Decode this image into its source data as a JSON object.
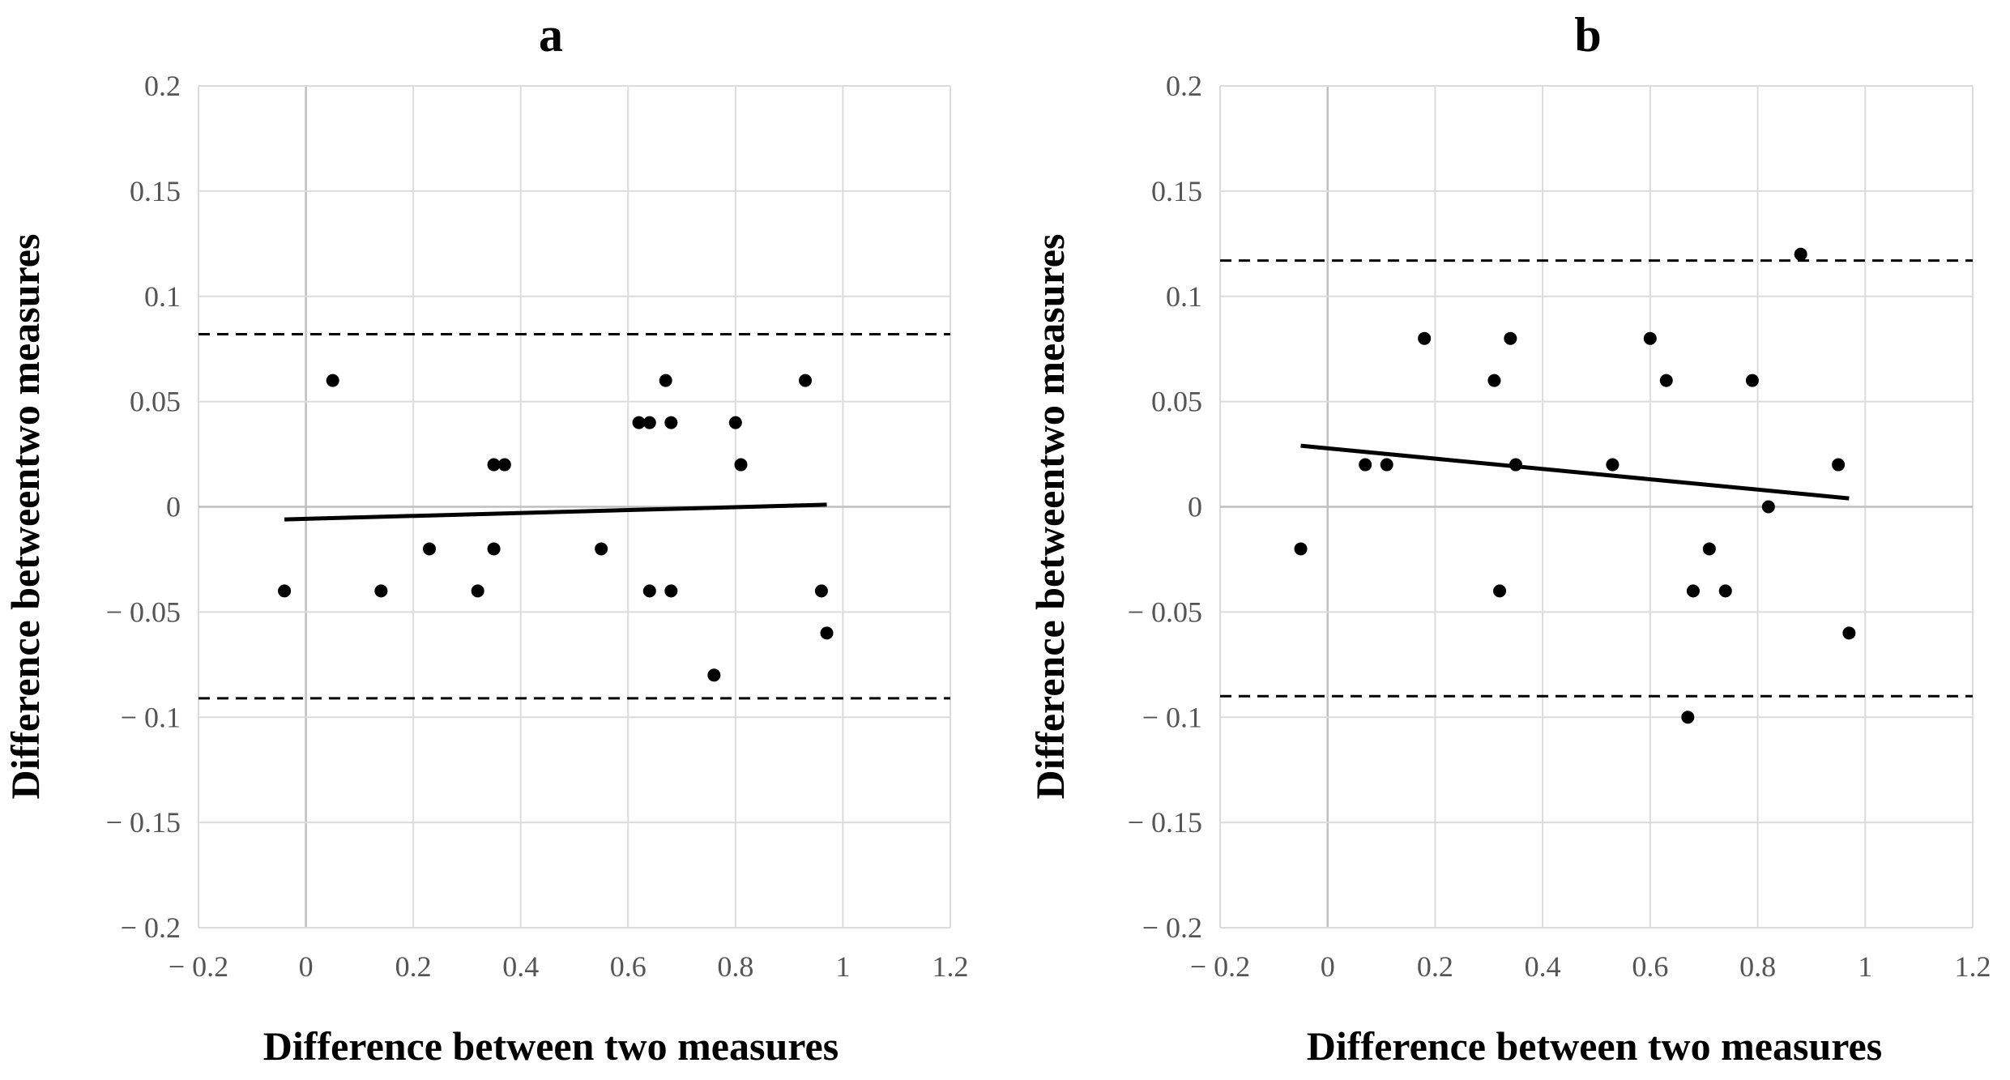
{
  "chart_data": [
    {
      "type": "scatter",
      "title": "a",
      "xlabel": "Difference between two measures",
      "ylabel": "Difference betweentwo measures",
      "xlim": [
        -0.2,
        1.2
      ],
      "ylim": [
        -0.2,
        0.2
      ],
      "xticks": [
        -0.2,
        0,
        0.2,
        0.4,
        0.6,
        0.8,
        1,
        1.2
      ],
      "yticks": [
        -0.2,
        -0.15,
        -0.1,
        -0.05,
        0,
        0.05,
        0.1,
        0.15,
        0.2
      ],
      "xtick_labels": [
        "− 0.2",
        "0",
        "0.2",
        "0.4",
        "0.6",
        "0.8",
        "1",
        "1.2"
      ],
      "ytick_labels": [
        "− 0.2",
        "− 0.15",
        "− 0.1",
        "− 0.05",
        "0",
        "0.05",
        "0.1",
        "0.15",
        "0.2"
      ],
      "grid": true,
      "points": [
        {
          "x": -0.04,
          "y": -0.04
        },
        {
          "x": 0.05,
          "y": 0.06
        },
        {
          "x": 0.14,
          "y": -0.04
        },
        {
          "x": 0.23,
          "y": -0.02
        },
        {
          "x": 0.32,
          "y": -0.04
        },
        {
          "x": 0.35,
          "y": 0.02
        },
        {
          "x": 0.37,
          "y": 0.02
        },
        {
          "x": 0.35,
          "y": -0.02
        },
        {
          "x": 0.55,
          "y": -0.02
        },
        {
          "x": 0.62,
          "y": 0.04
        },
        {
          "x": 0.64,
          "y": 0.04
        },
        {
          "x": 0.67,
          "y": 0.06
        },
        {
          "x": 0.68,
          "y": 0.04
        },
        {
          "x": 0.64,
          "y": -0.04
        },
        {
          "x": 0.68,
          "y": -0.04
        },
        {
          "x": 0.76,
          "y": -0.08
        },
        {
          "x": 0.8,
          "y": 0.04
        },
        {
          "x": 0.81,
          "y": 0.02
        },
        {
          "x": 0.93,
          "y": 0.06
        },
        {
          "x": 0.96,
          "y": -0.04
        },
        {
          "x": 0.97,
          "y": -0.06
        }
      ],
      "trend_line": {
        "x1": -0.04,
        "y1": -0.006,
        "x2": 0.97,
        "y2": 0.001
      },
      "limit_lines": [
        0.082,
        -0.091
      ]
    },
    {
      "type": "scatter",
      "title": "b",
      "xlabel": "Difference between two measures",
      "ylabel": "Difference betweentwo measures",
      "xlim": [
        -0.2,
        1.2
      ],
      "ylim": [
        -0.2,
        0.2
      ],
      "xticks": [
        -0.2,
        0,
        0.2,
        0.4,
        0.6,
        0.8,
        1,
        1.2
      ],
      "yticks": [
        -0.2,
        -0.15,
        -0.1,
        -0.05,
        0,
        0.05,
        0.1,
        0.15,
        0.2
      ],
      "xtick_labels": [
        "− 0.2",
        "0",
        "0.2",
        "0.4",
        "0.6",
        "0.8",
        "1",
        "1.2"
      ],
      "ytick_labels": [
        "− 0.2",
        "− 0.15",
        "− 0.1",
        "− 0.05",
        "0",
        "0.05",
        "0.1",
        "0.15",
        "0.2"
      ],
      "grid": true,
      "points": [
        {
          "x": -0.05,
          "y": -0.02
        },
        {
          "x": 0.07,
          "y": 0.02
        },
        {
          "x": 0.11,
          "y": 0.02
        },
        {
          "x": 0.18,
          "y": 0.08
        },
        {
          "x": 0.31,
          "y": 0.06
        },
        {
          "x": 0.32,
          "y": -0.04
        },
        {
          "x": 0.34,
          "y": 0.08
        },
        {
          "x": 0.35,
          "y": 0.02
        },
        {
          "x": 0.53,
          "y": 0.02
        },
        {
          "x": 0.6,
          "y": 0.08
        },
        {
          "x": 0.63,
          "y": 0.06
        },
        {
          "x": 0.67,
          "y": -0.1
        },
        {
          "x": 0.68,
          "y": -0.04
        },
        {
          "x": 0.71,
          "y": -0.02
        },
        {
          "x": 0.74,
          "y": -0.04
        },
        {
          "x": 0.79,
          "y": 0.06
        },
        {
          "x": 0.82,
          "y": 0.0
        },
        {
          "x": 0.88,
          "y": 0.12
        },
        {
          "x": 0.95,
          "y": 0.02
        },
        {
          "x": 0.97,
          "y": -0.06
        }
      ],
      "trend_line": {
        "x1": -0.05,
        "y1": 0.029,
        "x2": 0.97,
        "y2": 0.004
      },
      "limit_lines": [
        0.117,
        -0.09
      ]
    }
  ]
}
